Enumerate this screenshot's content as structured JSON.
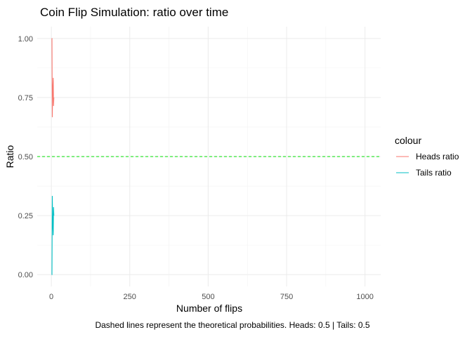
{
  "chart_data": {
    "type": "line",
    "title": "Coin Flip Simulation: ratio over time",
    "xlabel": "Number of flips",
    "ylabel": "Ratio",
    "caption": "Dashed lines represent the theoretical probabilities.  Heads:  0.5  | Tails:  0.5",
    "xlim": [
      -45,
      1050
    ],
    "ylim": [
      -0.05,
      1.05
    ],
    "x_ticks": [
      0,
      250,
      500,
      750,
      1000
    ],
    "x_tick_labels": [
      "0",
      "250",
      "500",
      "750",
      "1000"
    ],
    "y_ticks": [
      0,
      0.25,
      0.5,
      0.75,
      1.0
    ],
    "y_tick_labels": [
      "0.00",
      "0.25",
      "0.50",
      "0.75",
      "1.00"
    ],
    "grid": true,
    "legend": {
      "title": "colour",
      "placement": "right"
    },
    "reference_lines": [
      {
        "y": 0.5,
        "style": "dashed",
        "color": "#00dd00"
      }
    ],
    "series": [
      {
        "name": "Heads ratio",
        "color": "#f8766d",
        "x": [
          1,
          2,
          3,
          4,
          5,
          6,
          7,
          8
        ],
        "y": [
          1.0,
          1.0,
          0.6667,
          0.75,
          0.8,
          0.8333,
          0.7143,
          0.75
        ]
      },
      {
        "name": "Tails ratio",
        "color": "#00bfc4",
        "x": [
          1,
          2,
          3,
          4,
          5,
          6,
          7,
          8
        ],
        "y": [
          0.0,
          0.0,
          0.3333,
          0.25,
          0.2,
          0.1667,
          0.2857,
          0.25
        ]
      }
    ]
  }
}
